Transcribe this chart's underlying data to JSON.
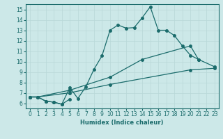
{
  "xlabel": "Humidex (Indice chaleur)",
  "xlim": [
    -0.5,
    23.5
  ],
  "ylim": [
    5.5,
    15.5
  ],
  "xticks": [
    0,
    1,
    2,
    3,
    4,
    5,
    6,
    7,
    8,
    9,
    10,
    11,
    12,
    13,
    14,
    15,
    16,
    17,
    18,
    19,
    20,
    21,
    22,
    23
  ],
  "yticks": [
    6,
    7,
    8,
    9,
    10,
    11,
    12,
    13,
    14,
    15
  ],
  "bg_color": "#cce8e8",
  "line_color": "#1a6b6b",
  "grid_color": "#b8d8d8",
  "line1_x": [
    0,
    1,
    2,
    3,
    4,
    5,
    6,
    7,
    8,
    9,
    10,
    11,
    12,
    13,
    14,
    15,
    16,
    17,
    18,
    19,
    20,
    21
  ],
  "line1_y": [
    6.6,
    6.6,
    6.2,
    6.1,
    5.9,
    7.5,
    6.45,
    7.6,
    9.25,
    10.55,
    13.0,
    13.5,
    13.2,
    13.25,
    14.2,
    15.25,
    13.0,
    13.0,
    12.5,
    11.5,
    10.6,
    10.2
  ],
  "line2_x": [
    0,
    1,
    2,
    3,
    4,
    5
  ],
  "line2_y": [
    6.6,
    6.6,
    6.2,
    6.1,
    5.9,
    6.4
  ],
  "line3_x": [
    0,
    1,
    5,
    10,
    14,
    20,
    21,
    23
  ],
  "line3_y": [
    6.6,
    6.6,
    7.25,
    8.5,
    10.2,
    11.5,
    10.2,
    9.5
  ],
  "line4_x": [
    0,
    1,
    5,
    10,
    20,
    23
  ],
  "line4_y": [
    6.6,
    6.6,
    7.0,
    7.8,
    9.2,
    9.35
  ]
}
